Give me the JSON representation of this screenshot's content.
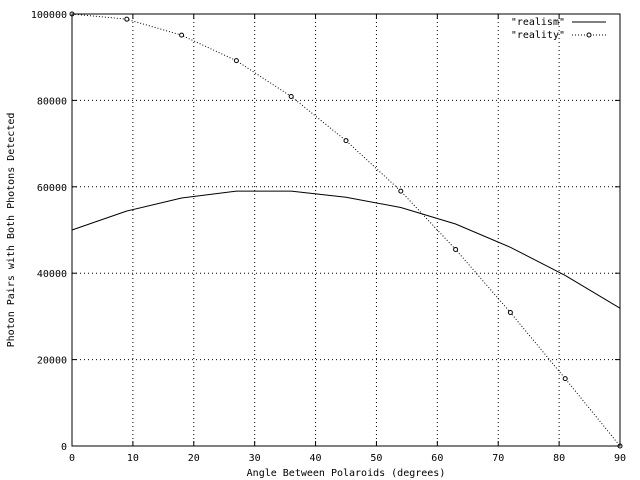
{
  "chart_data": {
    "type": "line",
    "title": "",
    "xlabel": "Angle Between Polaroids (degrees)",
    "ylabel": "Photon Pairs with Both Photons Detected",
    "xlim": [
      0,
      90
    ],
    "ylim": [
      0,
      100000
    ],
    "x_ticks": [
      0,
      10,
      20,
      30,
      40,
      50,
      60,
      70,
      80,
      90
    ],
    "y_ticks": [
      0,
      20000,
      40000,
      60000,
      80000,
      100000
    ],
    "grid": true,
    "legend_position": "top-right",
    "series": [
      {
        "name": "\"realism\"",
        "style": "solid",
        "color": "#000000",
        "x": [
          0,
          9,
          18,
          27,
          36,
          45,
          54,
          63,
          72,
          81,
          90
        ],
        "y": [
          50000,
          54400,
          57400,
          59000,
          59000,
          57600,
          55200,
          51400,
          46000,
          39500,
          31900
        ]
      },
      {
        "name": "\"reality\"",
        "style": "dotted-with-points",
        "color": "#000000",
        "x": [
          0,
          9,
          18,
          27,
          36,
          45,
          54,
          63,
          72,
          81,
          90
        ],
        "y": [
          100000,
          98800,
          95100,
          89200,
          80900,
          70700,
          59000,
          45500,
          30900,
          15600,
          0
        ]
      }
    ]
  }
}
